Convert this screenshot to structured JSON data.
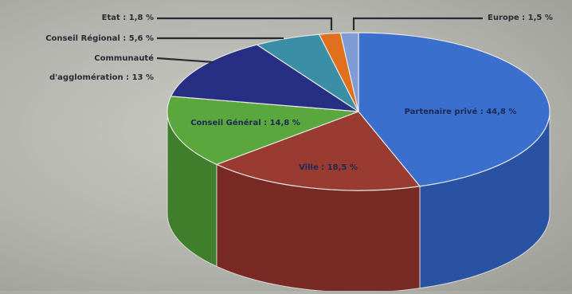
{
  "chart_data": {
    "type": "pie",
    "style": "3d",
    "title": "",
    "legend": "none",
    "slices": [
      {
        "key": "partenaire",
        "label": "Partenaire privé : 44,8 %",
        "value": 44.8,
        "color": "#3b6fce",
        "side_color": "#2a52a3"
      },
      {
        "key": "ville",
        "label": "Ville : 18,5 %",
        "value": 18.5,
        "color": "#9a3b32",
        "side_color": "#7a2a24"
      },
      {
        "key": "cg",
        "label": "Conseil Général : 14,8 %",
        "value": 14.8,
        "color": "#5aa83d",
        "side_color": "#3f7f2b"
      },
      {
        "key": "ca",
        "label_lines": [
          "Communauté",
          "d'agglomération : 13 %"
        ],
        "value": 13,
        "color": "#262f83",
        "side_color": "#1a2160"
      },
      {
        "key": "cr",
        "label": "Conseil Régional : 5,6 %",
        "value": 5.6,
        "color": "#3a8fa6",
        "side_color": "#2b6c7d"
      },
      {
        "key": "etat",
        "label": "Etat : 1,8 %",
        "value": 1.8,
        "color": "#e0701e",
        "side_color": "#b05515"
      },
      {
        "key": "europe",
        "label": "Europe : 1,5 %",
        "value": 1.5,
        "color": "#7f9bd6",
        "side_color": "#5f7cb8"
      }
    ]
  }
}
